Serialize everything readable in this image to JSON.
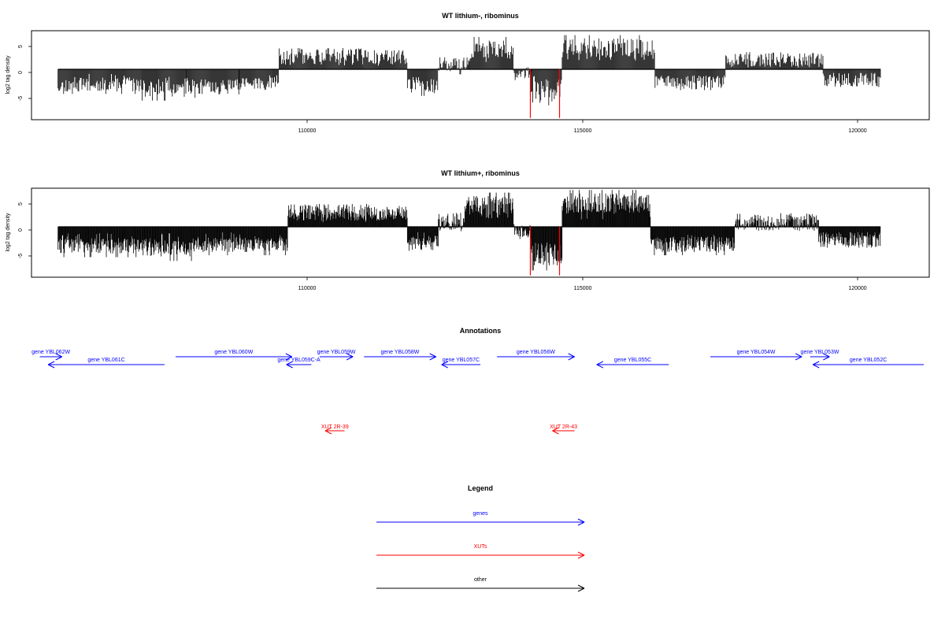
{
  "chart_data": [
    {
      "type": "bar",
      "title": "WT lithium-, ribominus",
      "ylabel": "log2 tag density",
      "xlabel": "",
      "xlim": [
        101500,
        121800
      ],
      "ylim": [
        -8.5,
        6.5
      ],
      "yticks": [
        -5,
        0,
        5
      ],
      "xticks": [
        110000,
        115000,
        120000
      ],
      "bar_color": "#000000",
      "highlight_color": "#ff0000",
      "baseline": {
        "x": [
          102100,
          117200
        ],
        "y": 0
      },
      "segments": [
        {
          "x0": 102100,
          "x1": 104000,
          "y": -2.6,
          "var": 1.2
        },
        {
          "x0": 104000,
          "x1": 105000,
          "y": -3.3,
          "var": 1.4
        },
        {
          "x0": 105000,
          "x1": 106200,
          "y": -3.0,
          "var": 1.3
        },
        {
          "x0": 106200,
          "x1": 107100,
          "y": -2.4,
          "var": 1.1
        },
        {
          "x0": 107100,
          "x1": 109000,
          "y": 2.2,
          "var": 1.4
        },
        {
          "x0": 109000,
          "x1": 110000,
          "y": 2.0,
          "var": 1.2
        },
        {
          "x0": 110000,
          "x1": 110700,
          "y": -2.8,
          "var": 1.3
        },
        {
          "x0": 110700,
          "x1": 111400,
          "y": 0.6,
          "var": 1.5
        },
        {
          "x0": 111400,
          "x1": 112400,
          "y": 3.4,
          "var": 1.6
        },
        {
          "x0": 112400,
          "x1": 112800,
          "y": -0.8,
          "var": 1.2
        },
        {
          "x0": 112800,
          "x1": 113500,
          "y": -3.8,
          "var": 2.0
        },
        {
          "x0": 113500,
          "x1": 115600,
          "y": 3.6,
          "var": 1.6
        },
        {
          "x0": 115600,
          "x1": 117200,
          "y": -2.2,
          "var": 1.2
        },
        {
          "x0": 117200,
          "x1": 119400,
          "y": 1.6,
          "var": 1.3
        },
        {
          "x0": 119400,
          "x1": 120700,
          "y": -1.8,
          "var": 1.2
        }
      ],
      "highlight_x": [
        112780,
        113440
      ],
      "highlight_y": -8.2,
      "density_step": 18,
      "seed": 11
    },
    {
      "type": "bar",
      "title": "WT lithium+, ribominus",
      "ylabel": "log2 tag density",
      "xlabel": "",
      "xlim": [
        101500,
        121800
      ],
      "ylim": [
        -8.5,
        6.5
      ],
      "yticks": [
        -5,
        0,
        5
      ],
      "xticks": [
        110000,
        115000,
        120000
      ],
      "bar_color": "#000000",
      "highlight_color": "#ff0000",
      "segments": [
        {
          "x0": 102100,
          "x1": 104000,
          "y": -3.2,
          "var": 1.3
        },
        {
          "x0": 104000,
          "x1": 105200,
          "y": -3.6,
          "var": 1.4
        },
        {
          "x0": 105200,
          "x1": 106400,
          "y": -3.0,
          "var": 1.3
        },
        {
          "x0": 106400,
          "x1": 107300,
          "y": -3.0,
          "var": 1.1
        },
        {
          "x0": 107300,
          "x1": 109300,
          "y": 2.4,
          "var": 1.4
        },
        {
          "x0": 109300,
          "x1": 110000,
          "y": 2.2,
          "var": 1.2
        },
        {
          "x0": 110000,
          "x1": 110700,
          "y": -2.8,
          "var": 1.3
        },
        {
          "x0": 110700,
          "x1": 111300,
          "y": 0.8,
          "var": 1.6
        },
        {
          "x0": 111300,
          "x1": 112400,
          "y": 3.6,
          "var": 1.6
        },
        {
          "x0": 112400,
          "x1": 112800,
          "y": -0.8,
          "var": 1.3
        },
        {
          "x0": 112800,
          "x1": 113500,
          "y": -4.6,
          "var": 2.0
        },
        {
          "x0": 113500,
          "x1": 115500,
          "y": 4.0,
          "var": 1.7
        },
        {
          "x0": 115500,
          "x1": 117400,
          "y": -3.0,
          "var": 1.4
        },
        {
          "x0": 117400,
          "x1": 119300,
          "y": 0.8,
          "var": 1.5
        },
        {
          "x0": 119300,
          "x1": 120700,
          "y": -2.2,
          "var": 1.3
        }
      ],
      "highlight_x": [
        112780,
        113440
      ],
      "highlight_y": -8.2,
      "density_step": 12,
      "seed": 29
    }
  ],
  "axis_tick_labels": {
    "x": [
      "110000",
      "115000",
      "120000"
    ],
    "y": [
      "-5",
      "0",
      "5"
    ]
  },
  "annotations": {
    "title": "Annotations",
    "genes_color": "#0000ff",
    "xuts_color": "#ff0000",
    "genes": [
      {
        "label": "gene YBL062W",
        "x0": 101650,
        "x1": 102050,
        "dir": "right",
        "row": 0
      },
      {
        "label": "gene YBL061C",
        "x0": 101800,
        "x1": 103900,
        "dir": "left",
        "row": 1
      },
      {
        "label": "gene YBL060W",
        "x0": 104100,
        "x1": 106200,
        "dir": "right",
        "row": 0
      },
      {
        "label": "gene YBL059C-A",
        "x0": 106100,
        "x1": 106550,
        "dir": "left",
        "row": 1
      },
      {
        "label": "gene YBL059W",
        "x0": 106700,
        "x1": 107300,
        "dir": "right",
        "row": 0
      },
      {
        "label": "gene YBL058W",
        "x0": 107500,
        "x1": 108800,
        "dir": "right",
        "row": 0
      },
      {
        "label": "gene YBL057C",
        "x0": 108900,
        "x1": 109600,
        "dir": "left",
        "row": 1
      },
      {
        "label": "gene YBL056W",
        "x0": 109900,
        "x1": 111300,
        "dir": "right",
        "row": 0
      },
      {
        "label": "gene YBL055C",
        "x0": 111700,
        "x1": 113000,
        "dir": "left",
        "row": 1
      },
      {
        "label": "gene YBL054W",
        "x0": 113750,
        "x1": 115400,
        "dir": "right",
        "row": 0
      },
      {
        "label": "gene YBL053W",
        "x0": 115550,
        "x1": 115900,
        "dir": "right",
        "row": 0
      },
      {
        "label": "gene YBL052C",
        "x0": 115600,
        "x1": 117600,
        "dir": "left",
        "row": 1
      }
    ],
    "xuts": [
      {
        "label": "XUT 2R-39",
        "x0": 106800,
        "x1": 107150,
        "dir": "left"
      },
      {
        "label": "XUT 2R-43",
        "x0": 110900,
        "x1": 111300,
        "dir": "left"
      }
    ]
  },
  "legend": {
    "title": "Legend",
    "items": [
      {
        "label": "genes",
        "color": "#0000ff"
      },
      {
        "label": "XUTs",
        "color": "#ff0000"
      },
      {
        "label": "other",
        "color": "#000000"
      }
    ]
  }
}
